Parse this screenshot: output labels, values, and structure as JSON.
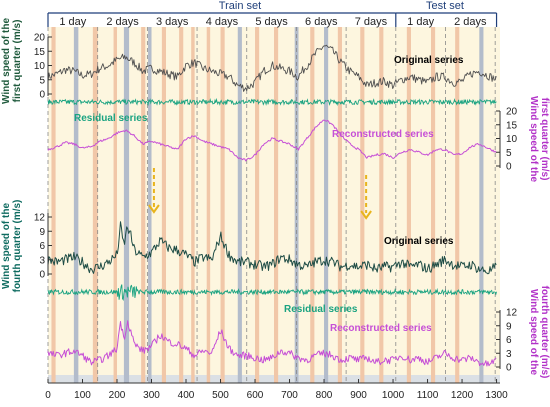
{
  "chart_data": {
    "type": "line",
    "header": {
      "left": "Train set",
      "right": "Test set"
    },
    "segments": [
      {
        "label": "1 day",
        "start": 0,
        "end": 144
      },
      {
        "label": "2 days",
        "start": 144,
        "end": 288
      },
      {
        "label": "3 days",
        "start": 288,
        "end": 432
      },
      {
        "label": "4 days",
        "start": 432,
        "end": 576
      },
      {
        "label": "5 days",
        "start": 576,
        "end": 720
      },
      {
        "label": "6 days",
        "start": 720,
        "end": 864
      },
      {
        "label": "7 days",
        "start": 864,
        "end": 1008
      },
      {
        "label": "1 day",
        "start": 1008,
        "end": 1152
      },
      {
        "label": "2 days",
        "start": 1152,
        "end": 1296
      }
    ],
    "split_at": 1008,
    "xlim": [
      0,
      1310
    ],
    "xticks": [
      0,
      100,
      200,
      300,
      400,
      500,
      600,
      700,
      800,
      900,
      1000,
      1100,
      1200,
      1300
    ],
    "colors": {
      "bg": "#fdf6df",
      "band_salmon": "#f1c7a8",
      "band_blue": "#b3bccb",
      "q1_original": "#505050",
      "residual": "#1aa381",
      "reconstructed": "#c64fd6",
      "q4_original": "#1f4d46",
      "arrow": "#e8b41c",
      "header": "#1f3f7a",
      "q1_label": "#1f5a3c",
      "q4_label": "#0e6b60",
      "right_label": "#b232c8"
    },
    "bands_blue": [
      [
        75,
        88
      ],
      [
        220,
        235
      ],
      [
        290,
        300
      ],
      [
        550,
        562
      ],
      [
        715,
        726
      ],
      [
        800,
        812
      ],
      [
        1250,
        1262
      ]
    ],
    "bands_salmon": [
      [
        10,
        22
      ],
      [
        130,
        144
      ],
      [
        190,
        200
      ],
      [
        270,
        282
      ],
      [
        330,
        342
      ],
      [
        380,
        392
      ],
      [
        415,
        425
      ],
      [
        460,
        470
      ],
      [
        500,
        512
      ],
      [
        600,
        612
      ],
      [
        655,
        667
      ],
      [
        760,
        772
      ],
      [
        840,
        852
      ],
      [
        905,
        917
      ],
      [
        960,
        972
      ],
      [
        1040,
        1052
      ],
      [
        1110,
        1122
      ],
      [
        1180,
        1192
      ]
    ],
    "dashed_x": [
      0,
      144,
      288,
      432,
      576,
      720,
      864,
      1008,
      1152,
      1296
    ],
    "panels": {
      "q1_original": {
        "name": "Original series",
        "ylabel_line1": "Wind speed of the",
        "ylabel_line2": "first quarter (m/s)",
        "yticks": [
          0,
          5,
          10,
          15,
          20
        ],
        "x": [
          0,
          25,
          50,
          75,
          100,
          125,
          150,
          175,
          200,
          225,
          250,
          275,
          300,
          325,
          350,
          375,
          400,
          425,
          450,
          475,
          500,
          525,
          550,
          575,
          600,
          625,
          650,
          675,
          700,
          725,
          750,
          775,
          800,
          825,
          850,
          875,
          900,
          925,
          950,
          975,
          1000,
          1025,
          1050,
          1075,
          1100,
          1125,
          1150,
          1175,
          1200,
          1225,
          1250,
          1275,
          1300
        ],
        "values": [
          6,
          7,
          8.5,
          8,
          6.5,
          7,
          9,
          10,
          12,
          13,
          11,
          8,
          9,
          8,
          7,
          6,
          10,
          11,
          9,
          8,
          7,
          6,
          3,
          2,
          4,
          8,
          10,
          9,
          8,
          6,
          10,
          14,
          17,
          15,
          11,
          8,
          6,
          3,
          4,
          4.5,
          3,
          5,
          6,
          5,
          4,
          6,
          6,
          4,
          4.5,
          7,
          8,
          6.5,
          5
        ]
      },
      "q1_residual": {
        "name": "Residual series"
      },
      "q1_reconstructed": {
        "name": "Reconstructed series",
        "ylabel_line1": "Wind speed of the",
        "ylabel_line2": "first quarter (m/s)",
        "yticks": [
          0,
          5,
          10,
          15,
          20
        ]
      },
      "q4_original": {
        "name": "Original series",
        "ylabel_line1": "Wind speed of the",
        "ylabel_line2": "fourth quarter (m/s)",
        "yticks": [
          0,
          3,
          6,
          9,
          12
        ],
        "x": [
          0,
          25,
          50,
          75,
          100,
          125,
          150,
          175,
          200,
          210,
          220,
          230,
          240,
          250,
          275,
          300,
          325,
          350,
          375,
          400,
          425,
          450,
          475,
          500,
          525,
          550,
          575,
          600,
          625,
          650,
          675,
          700,
          725,
          750,
          775,
          800,
          825,
          850,
          875,
          900,
          925,
          950,
          975,
          1000,
          1025,
          1050,
          1075,
          1100,
          1125,
          1150,
          1175,
          1200,
          1225,
          1250,
          1275,
          1300
        ],
        "values": [
          3,
          2.5,
          3,
          3.5,
          2.5,
          1,
          1.5,
          2.5,
          4,
          10,
          6,
          10,
          8,
          5,
          3.5,
          4.5,
          7,
          5.5,
          5,
          4,
          2.5,
          3.5,
          3,
          8,
          4,
          2.5,
          2.5,
          2,
          1.5,
          2,
          3.5,
          3,
          2,
          1.5,
          2.5,
          3,
          2.5,
          1.5,
          2,
          1.5,
          2,
          1,
          1.5,
          1.5,
          2.5,
          1.5,
          2,
          1,
          2,
          3,
          2,
          1.5,
          2,
          1,
          0.5,
          1.5
        ]
      },
      "q4_residual": {
        "name": "Residual series"
      },
      "q4_reconstructed": {
        "name": "Reconstructed series",
        "ylabel_line1": "Wind speed of the",
        "ylabel_line2": "fourth quarter (m/s)",
        "yticks": [
          0,
          3,
          6,
          9,
          12
        ]
      }
    }
  }
}
